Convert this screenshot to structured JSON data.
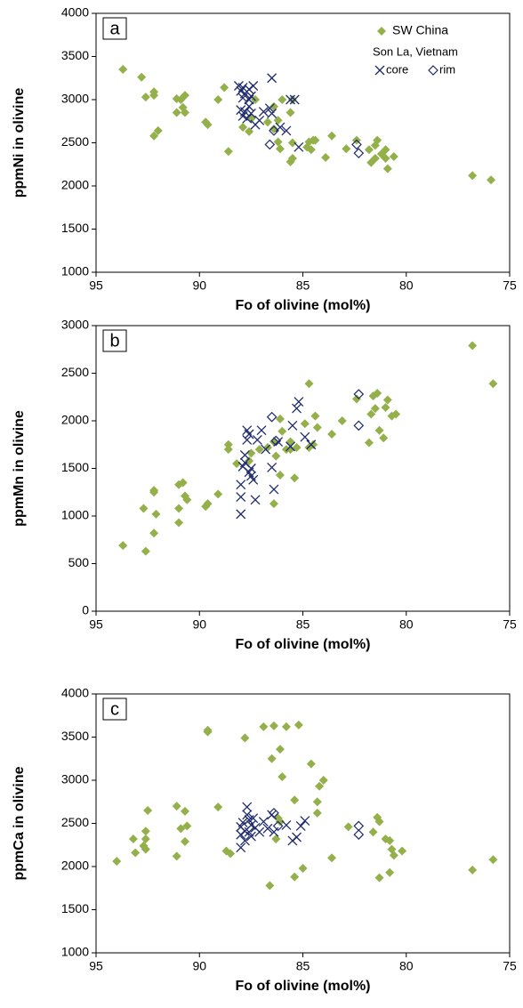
{
  "chart_data": [
    {
      "type": "scatter",
      "panel_label": "a",
      "xlabel": "Fo of olivine (mol%)",
      "ylabel": "ppmNi in olivine",
      "xlim": [
        95,
        75
      ],
      "xticks": [
        95,
        90,
        85,
        80,
        75
      ],
      "ylim": [
        1000,
        4000
      ],
      "yticks": [
        1000,
        1500,
        2000,
        2500,
        3000,
        3500,
        4000
      ],
      "legend": "upper right",
      "legend_group_title": "Son La, Vietnam",
      "series": [
        {
          "name": "SW China",
          "color": "#94b04a",
          "marker": "diamond",
          "x": [
            93.7,
            92.8,
            92.6,
            92.2,
            92.2,
            92.2,
            92.0,
            91.1,
            91.1,
            90.8,
            90.7,
            90.7,
            90.9,
            89.7,
            89.6,
            89.1,
            88.8,
            88.6,
            87.9,
            87.6,
            87.5,
            87.3,
            86.7,
            86.4,
            86.4,
            86.2,
            86.2,
            86.1,
            86.0,
            85.6,
            85.6,
            85.5,
            85.5,
            85.5,
            84.8,
            84.7,
            84.6,
            84.5,
            84.4,
            83.9,
            83.6,
            82.9,
            82.4,
            81.8,
            81.7,
            81.5,
            81.5,
            81.4,
            81.2,
            81.0,
            81.0,
            80.9,
            80.6,
            76.8,
            75.9
          ],
          "values": [
            3350,
            3260,
            3030,
            3090,
            3050,
            2580,
            2640,
            3010,
            2850,
            2910,
            3050,
            2850,
            3000,
            2740,
            2710,
            3000,
            3140,
            2400,
            2680,
            2630,
            2780,
            3000,
            2740,
            2660,
            2920,
            2760,
            2510,
            2430,
            3000,
            2850,
            2280,
            2320,
            2500,
            3000,
            2450,
            2510,
            2420,
            2530,
            2530,
            2330,
            2580,
            2430,
            2530,
            2420,
            2270,
            2320,
            2470,
            2530,
            2370,
            2420,
            2320,
            2200,
            2340,
            2120,
            2070
          ]
        },
        {
          "name": "core",
          "color": "#1f2a6b",
          "marker": "x",
          "x": [
            88.1,
            88.0,
            87.9,
            87.9,
            87.8,
            87.6,
            87.6,
            87.5,
            87.4,
            88.0,
            87.9,
            87.8,
            87.7,
            87.6,
            87.5,
            87.3,
            87.1,
            86.9,
            86.6,
            86.5,
            86.5,
            86.1,
            85.8,
            85.6,
            85.4,
            85.2
          ],
          "values": [
            3160,
            3100,
            3020,
            3140,
            3070,
            3000,
            3120,
            3040,
            3160,
            2880,
            2810,
            2860,
            2780,
            2920,
            2840,
            2710,
            2760,
            2860,
            2900,
            3250,
            2840,
            2680,
            2640,
            3000,
            3000,
            2450
          ]
        },
        {
          "name": "rim",
          "color": "#1f2a6b",
          "marker": "open-diamond",
          "x": [
            86.6,
            86.4,
            82.4,
            82.3
          ],
          "values": [
            2480,
            2640,
            2480,
            2380
          ]
        }
      ]
    },
    {
      "type": "scatter",
      "panel_label": "b",
      "xlabel": "Fo of olivine (mol%)",
      "ylabel": "ppmMn in olivine",
      "xlim": [
        95,
        75
      ],
      "xticks": [
        95,
        90,
        85,
        80,
        75
      ],
      "ylim": [
        0,
        3000
      ],
      "yticks": [
        0,
        500,
        1000,
        1500,
        2000,
        2500,
        3000
      ],
      "series": [
        {
          "color": "#94b04a",
          "marker": "diamond",
          "x": [
            93.7,
            92.7,
            92.6,
            92.2,
            92.2,
            92.1,
            92.2,
            91.0,
            91.0,
            91.0,
            90.7,
            90.6,
            90.8,
            89.7,
            89.6,
            89.1,
            88.6,
            88.6,
            88.2,
            87.6,
            87.5,
            87.1,
            86.7,
            86.4,
            86.4,
            86.3,
            86.1,
            86.1,
            86.0,
            85.8,
            85.6,
            85.6,
            85.4,
            85.3,
            84.9,
            84.7,
            84.7,
            84.5,
            84.4,
            84.3,
            83.6,
            83.1,
            82.4,
            81.8,
            81.7,
            81.6,
            81.5,
            81.4,
            81.3,
            81.1,
            81.0,
            80.9,
            80.7,
            80.5,
            76.8,
            75.8
          ],
          "values": [
            690,
            1080,
            630,
            1270,
            1250,
            1020,
            820,
            1330,
            1080,
            930,
            1210,
            1170,
            1350,
            1100,
            1130,
            1230,
            1700,
            1750,
            1550,
            1580,
            1660,
            1700,
            1720,
            1780,
            1130,
            1630,
            1430,
            2020,
            1890,
            1700,
            1700,
            1780,
            1400,
            1720,
            1970,
            2390,
            1720,
            1750,
            2050,
            1930,
            1860,
            2000,
            2230,
            1770,
            2070,
            2260,
            2130,
            2290,
            1900,
            1820,
            2140,
            2220,
            2050,
            2070,
            2790,
            2390
          ]
        },
        {
          "color": "#1f2a6b",
          "marker": "x",
          "x": [
            88.0,
            88.0,
            88.0,
            87.9,
            87.8,
            87.8,
            87.7,
            87.7,
            87.6,
            87.6,
            87.5,
            87.5,
            87.4,
            87.3,
            87.2,
            87.0,
            86.8,
            86.5,
            86.4,
            86.2,
            85.6,
            85.5,
            85.3,
            85.2,
            84.9,
            84.6
          ],
          "values": [
            1020,
            1200,
            1330,
            1520,
            1640,
            1560,
            1900,
            1800,
            1860,
            1460,
            1420,
            1500,
            1380,
            1170,
            1800,
            1900,
            1700,
            1510,
            1280,
            1780,
            1730,
            1950,
            2130,
            2200,
            1830,
            1750
          ]
        },
        {
          "color": "#1f2a6b",
          "marker": "open-diamond",
          "x": [
            86.5,
            86.3,
            82.3,
            82.3
          ],
          "values": [
            2040,
            1790,
            2280,
            1950
          ]
        }
      ]
    },
    {
      "type": "scatter",
      "panel_label": "c",
      "xlabel": "Fo of olivine (mol%)",
      "ylabel": "ppmCa in olivine",
      "xlim": [
        95,
        75
      ],
      "xticks": [
        95,
        90,
        85,
        80,
        75
      ],
      "ylim": [
        1000,
        4000
      ],
      "yticks": [
        1000,
        1500,
        2000,
        2500,
        3000,
        3500,
        4000
      ],
      "series": [
        {
          "color": "#94b04a",
          "marker": "diamond",
          "x": [
            94.0,
            93.2,
            93.1,
            92.7,
            92.6,
            92.6,
            92.5,
            92.6,
            91.1,
            91.1,
            90.9,
            90.7,
            90.7,
            90.6,
            89.6,
            89.6,
            89.1,
            88.7,
            88.5,
            87.8,
            86.9,
            86.6,
            86.5,
            86.4,
            86.3,
            86.2,
            86.1,
            86.1,
            86.0,
            85.8,
            85.4,
            85.4,
            85.2,
            85.0,
            84.6,
            84.3,
            84.3,
            84.2,
            84.0,
            83.6,
            82.8,
            81.6,
            81.4,
            81.3,
            81.3,
            81.0,
            80.8,
            80.8,
            80.6,
            80.7,
            80.2,
            76.8,
            75.8
          ],
          "values": [
            2060,
            2320,
            2160,
            2240,
            2320,
            2410,
            2650,
            2200,
            2700,
            2120,
            2440,
            2290,
            2640,
            2470,
            3560,
            3580,
            2690,
            2180,
            2150,
            3490,
            3620,
            1780,
            3250,
            3630,
            2320,
            2560,
            2520,
            3360,
            3040,
            3620,
            2770,
            1880,
            3640,
            1980,
            3190,
            2620,
            2750,
            2930,
            3000,
            2100,
            2460,
            2400,
            2570,
            2520,
            1870,
            2320,
            2300,
            1930,
            2130,
            2200,
            2180,
            1960,
            2080
          ]
        },
        {
          "color": "#1f2a6b",
          "marker": "x",
          "x": [
            88.0,
            88.0,
            88.0,
            87.9,
            87.8,
            87.8,
            87.7,
            87.7,
            87.6,
            87.6,
            87.5,
            87.5,
            87.4,
            87.3,
            87.1,
            86.9,
            86.7,
            86.5,
            86.4,
            85.8,
            85.5,
            85.3,
            85.1,
            84.9
          ],
          "values": [
            2220,
            2370,
            2460,
            2510,
            2300,
            2410,
            2600,
            2690,
            2400,
            2540,
            2350,
            2480,
            2560,
            2450,
            2400,
            2520,
            2440,
            2600,
            2400,
            2480,
            2300,
            2340,
            2470,
            2530
          ]
        },
        {
          "color": "#1f2a6b",
          "marker": "open-diamond",
          "x": [
            86.4,
            86.2,
            82.3,
            82.3
          ],
          "values": [
            2620,
            2470,
            2470,
            2370
          ]
        }
      ]
    }
  ]
}
